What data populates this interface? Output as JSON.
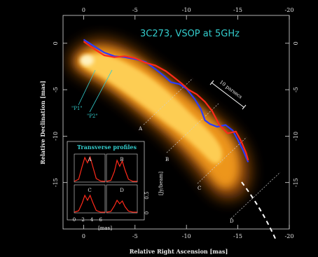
{
  "chart_data": {
    "type": "line",
    "title": "3C273,  VSOP at 5GHz",
    "xlabel": "Relative Right Ascension [mas]",
    "ylabel": "Relative Declination [mas]",
    "xlim": [
      2,
      -20
    ],
    "ylim": [
      -20,
      3
    ],
    "x_ticks": [
      0,
      -5,
      -10,
      -15,
      -20
    ],
    "y_ticks": [
      0,
      -5,
      -10,
      -15
    ],
    "x_tick_labels": [
      "0",
      "-5",
      "-10",
      "-15",
      "-20"
    ],
    "y_tick_labels": [
      "0",
      "-5",
      "-10",
      "-15"
    ],
    "background": "#000000",
    "series": [
      {
        "name": "P1",
        "color": "#2a3cff",
        "x": [
          0,
          -1,
          -2,
          -3,
          -4,
          -5,
          -6,
          -7,
          -7.8,
          -8.5,
          -9.3,
          -10,
          -10.8,
          -11.4,
          -11.8,
          -12.3,
          -13,
          -13.8,
          -14.5,
          -15,
          -15.5,
          -16
        ],
        "y": [
          0.4,
          -0.3,
          -1.0,
          -1.4,
          -1.5,
          -1.7,
          -2.0,
          -2.8,
          -3.5,
          -4.2,
          -4.4,
          -4.9,
          -6.0,
          -7.1,
          -8.3,
          -8.7,
          -9.0,
          -8.8,
          -9.4,
          -10.4,
          -11.5,
          -12.8
        ]
      },
      {
        "name": "P2",
        "color": "#ff2a1a",
        "x": [
          0,
          -1,
          -2,
          -3,
          -4,
          -5,
          -6,
          -7,
          -8,
          -8.7,
          -9.5,
          -10.2,
          -11,
          -11.8,
          -12.5,
          -13.2,
          -14,
          -14.8,
          -15.3,
          -15.8,
          -16
        ],
        "y": [
          0.2,
          -0.6,
          -1.3,
          -1.5,
          -1.4,
          -1.6,
          -2.1,
          -2.4,
          -3.0,
          -3.6,
          -4.3,
          -5.0,
          -5.5,
          -6.3,
          -7.3,
          -8.8,
          -9.7,
          -9.5,
          -10.5,
          -11.8,
          -12.6
        ]
      }
    ],
    "annotations": {
      "p1_label": "\"P1\"",
      "p2_label": "\"P2\"",
      "scale_bar_label": "10 parsecs",
      "profile_cuts": [
        "A",
        "B",
        "C",
        "D"
      ]
    },
    "inset": {
      "title": "Transverse profiles",
      "xlabel": "[mas]",
      "ylabel": "[Jy/beam]",
      "x_ticks": [
        0,
        2,
        4,
        6
      ],
      "x_tick_labels": [
        "0",
        "2",
        "4",
        "6"
      ],
      "y_ticks": [
        0,
        0.5
      ],
      "y_tick_labels": [
        "0",
        "0.5"
      ],
      "panels": [
        {
          "label": "A",
          "x": [
            0,
            1,
            1.8,
            2.4,
            3.0,
            3.6,
            4.2,
            5.0,
            6.0,
            7.0
          ],
          "y": [
            0.02,
            0.08,
            0.45,
            0.7,
            0.55,
            0.72,
            0.45,
            0.1,
            0.03,
            0.02
          ]
        },
        {
          "label": "B",
          "x": [
            0,
            1,
            1.8,
            2.4,
            3.0,
            3.6,
            4.2,
            5.0,
            6.0,
            7.0
          ],
          "y": [
            0.02,
            0.05,
            0.3,
            0.62,
            0.45,
            0.6,
            0.35,
            0.08,
            0.02,
            0.02
          ]
        },
        {
          "label": "C",
          "x": [
            0,
            1,
            1.8,
            2.4,
            3.0,
            3.6,
            4.2,
            5.0,
            6.0,
            7.0
          ],
          "y": [
            0.02,
            0.06,
            0.28,
            0.5,
            0.36,
            0.5,
            0.3,
            0.07,
            0.02,
            0.02
          ]
        },
        {
          "label": "D",
          "x": [
            0,
            1,
            1.8,
            2.4,
            3.0,
            3.6,
            4.2,
            5.0,
            6.0,
            7.0
          ],
          "y": [
            0.02,
            0.04,
            0.2,
            0.36,
            0.26,
            0.34,
            0.18,
            0.05,
            0.02,
            0.02
          ]
        }
      ]
    },
    "grid": false
  }
}
